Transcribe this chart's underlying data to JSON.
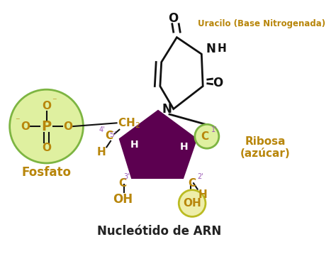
{
  "title": "Nucleótido de ARN",
  "title_fontsize": 12,
  "title_color": "#222222",
  "background_color": "#ffffff",
  "label_uracilo": "Uracilo (Base Nitrogenada)",
  "label_fosfato": "Fosfato",
  "label_ribosa": "Ribosa\n(azúcar)",
  "gold": "#B8860B",
  "dark": "#111111",
  "phosphate_fill": "#dff0a0",
  "phosphate_edge": "#7db542",
  "ribose_fill": "#5c0050",
  "c1_fill": "#dff0a0",
  "c1_edge": "#7db542",
  "oh2_fill": "#eeeeaa",
  "oh2_edge": "#bbbb22",
  "purple_num": "#9b59b6"
}
